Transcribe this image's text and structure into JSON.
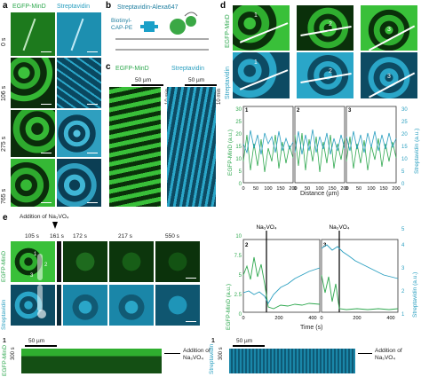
{
  "panel_a": {
    "label": "a",
    "col_titles": [
      "EGFP-MinD",
      "Streptavidin"
    ],
    "times": [
      "0 s",
      "106 s",
      "275 s",
      "765 s"
    ]
  },
  "panel_b": {
    "label": "b",
    "protein": "Streptavidin-Alexa647",
    "lipid": "Biotinyl-CAP-PE"
  },
  "panel_c": {
    "label": "c",
    "col_titles": [
      "EGFP-MinD",
      "Streptavidin"
    ],
    "scale_x": "50 µm",
    "scale_y": "10 min"
  },
  "panel_d": {
    "label": "d",
    "row_titles": [
      "EGFP-MinD",
      "Streptavidin"
    ],
    "profiles": [
      "1",
      "2",
      "3"
    ],
    "xlabel": "Distance (µm)",
    "ylabel_left": "EGFP-MinD (a.u.)",
    "ylabel_right": "Streptavidin (a.u.)",
    "yticks_left": [
      "0",
      "5",
      "10",
      "15",
      "20",
      "25",
      "30"
    ],
    "yticks_right": [
      "0",
      "5",
      "10",
      "15",
      "20",
      "25",
      "30"
    ],
    "xticks": [
      "0",
      "50",
      "100",
      "150",
      "200"
    ]
  },
  "panel_e": {
    "label": "e",
    "addition_label": "Addition of Na₃VO₄",
    "times": [
      "105 s",
      "161 s",
      "172 s",
      "217 s",
      "550 s"
    ],
    "row_titles": [
      "EGFP-MinD",
      "Streptavidin"
    ],
    "roi_labels": [
      "1",
      "2",
      "3"
    ],
    "plots": [
      {
        "id": "2",
        "marker": "Na₃VO₄",
        "yticks_left": [
          "0",
          "2.5",
          "5",
          "7.5",
          "10"
        ],
        "yticks_right": [
          "1",
          "2",
          "3",
          "4",
          "5"
        ],
        "xticks": [
          "0",
          "200",
          "400"
        ]
      },
      {
        "id": "3",
        "marker": "Na₃VO₄",
        "xticks": [
          "0",
          "200",
          "400"
        ]
      }
    ],
    "xlabel": "Time (s)",
    "ylabel_left": "EGFP-MinD (a.u.)",
    "ylabel_right": "Streptavidin (a.u.)"
  },
  "kymo_bottom": [
    {
      "id": "1",
      "channel": "EGFP-MinD",
      "scale_x": "50 µm",
      "scale_y": "300 s",
      "annotation": "Addition of Na₃VO₄"
    },
    {
      "id": "1",
      "channel": "Streptavidin",
      "scale_x": "50 µm",
      "scale_y": "300 s",
      "annotation": "Addition of Na₃VO₄"
    }
  ],
  "colors": {
    "green": "#2fa84f",
    "cyan": "#2a9fc0"
  }
}
